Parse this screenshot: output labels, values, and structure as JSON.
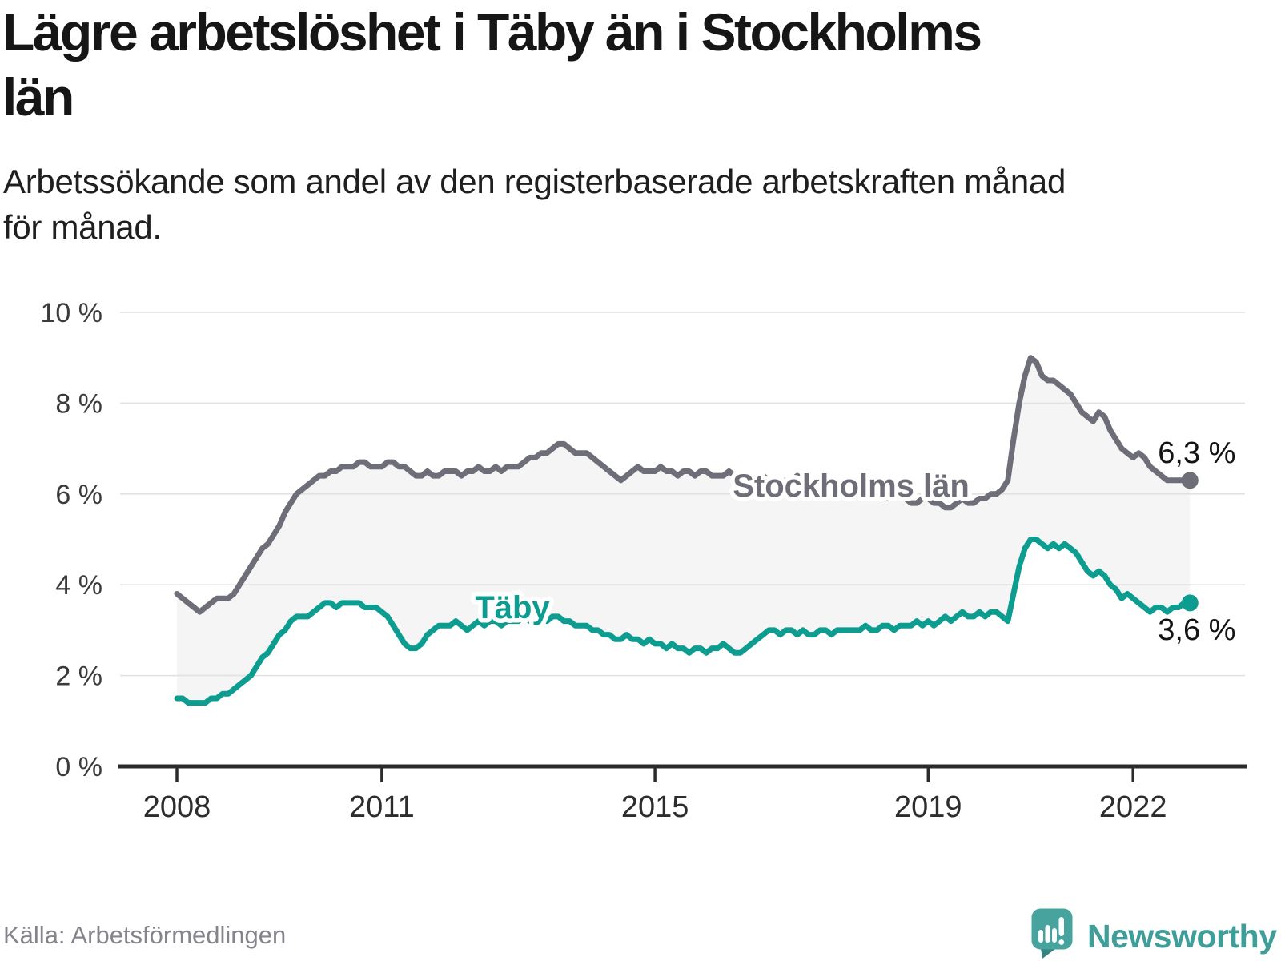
{
  "header": {
    "title_lines": [
      "Lägre arbetslöshet i Täby än i Stockholms",
      "län"
    ],
    "subtitle_lines": [
      "Arbetssökande som andel av den registerbaserade arbetskraften månad",
      "för månad."
    ]
  },
  "footer": {
    "source": "Källa: Arbetsförmedlingen",
    "brand_name": "Newsworthy"
  },
  "colors": {
    "stockholm_line": "#6e6e78",
    "taby_line": "#0d9d90",
    "band_fill": "#f5f5f6",
    "gridline": "#e2e2e2",
    "axis": "#2b2b2b",
    "tick_label": "#2d2d2d",
    "y_label": "#3b3b3b",
    "end_label": "#141414",
    "brand_teal": "#47a39e",
    "brand_teal_dark": "#35827e"
  },
  "chart_data": {
    "type": "line",
    "unit": "%",
    "x_start": {
      "year": 2008,
      "month": 1
    },
    "x_end": {
      "year": 2022,
      "month": 11
    },
    "ylim": [
      0,
      10
    ],
    "grid": true,
    "legend_position": "inline-labels",
    "y_ticks": [
      {
        "value": 0,
        "label": "0 %"
      },
      {
        "value": 2,
        "label": "2 %"
      },
      {
        "value": 4,
        "label": "4 %"
      },
      {
        "value": 6,
        "label": "6 %"
      },
      {
        "value": 8,
        "label": "8 %"
      },
      {
        "value": 10,
        "label": "10 %"
      }
    ],
    "x_ticks": [
      {
        "year": 2008,
        "label": "2008"
      },
      {
        "year": 2011,
        "label": "2011"
      },
      {
        "year": 2015,
        "label": "2015"
      },
      {
        "year": 2019,
        "label": "2019"
      },
      {
        "year": 2022,
        "label": "2022"
      }
    ],
    "series": [
      {
        "name": "Stockholms län",
        "slug": "stockholms-lan",
        "color": "#6e6e78",
        "end_label": "6,3 %",
        "end_value": 6.3,
        "values": [
          3.8,
          3.7,
          3.6,
          3.5,
          3.4,
          3.5,
          3.6,
          3.7,
          3.7,
          3.7,
          3.8,
          4.0,
          4.2,
          4.4,
          4.6,
          4.8,
          4.9,
          5.1,
          5.3,
          5.6,
          5.8,
          6.0,
          6.1,
          6.2,
          6.3,
          6.4,
          6.4,
          6.5,
          6.5,
          6.6,
          6.6,
          6.6,
          6.7,
          6.7,
          6.6,
          6.6,
          6.6,
          6.7,
          6.7,
          6.6,
          6.6,
          6.5,
          6.4,
          6.4,
          6.5,
          6.4,
          6.4,
          6.5,
          6.5,
          6.5,
          6.4,
          6.5,
          6.5,
          6.6,
          6.5,
          6.5,
          6.6,
          6.5,
          6.6,
          6.6,
          6.6,
          6.7,
          6.8,
          6.8,
          6.9,
          6.9,
          7.0,
          7.1,
          7.1,
          7.0,
          6.9,
          6.9,
          6.9,
          6.8,
          6.7,
          6.6,
          6.5,
          6.4,
          6.3,
          6.4,
          6.5,
          6.6,
          6.5,
          6.5,
          6.5,
          6.6,
          6.5,
          6.5,
          6.4,
          6.5,
          6.5,
          6.4,
          6.5,
          6.5,
          6.4,
          6.4,
          6.4,
          6.5,
          6.4,
          6.3,
          6.3,
          6.2,
          6.3,
          6.4,
          6.3,
          6.3,
          6.2,
          6.3,
          6.3,
          6.4,
          6.3,
          6.2,
          6.1,
          6.2,
          6.3,
          6.2,
          6.1,
          6.1,
          6.0,
          6.1,
          6.1,
          6.2,
          6.1,
          6.0,
          5.9,
          5.9,
          6.0,
          6.0,
          5.9,
          5.8,
          5.8,
          5.9,
          5.9,
          5.8,
          5.8,
          5.7,
          5.7,
          5.8,
          5.9,
          5.8,
          5.8,
          5.9,
          5.9,
          6.0,
          6.0,
          6.1,
          6.3,
          7.2,
          8.0,
          8.6,
          9.0,
          8.9,
          8.6,
          8.5,
          8.5,
          8.4,
          8.3,
          8.2,
          8.0,
          7.8,
          7.7,
          7.6,
          7.8,
          7.7,
          7.4,
          7.2,
          7.0,
          6.9,
          6.8,
          6.9,
          6.8,
          6.6,
          6.5,
          6.4,
          6.3,
          6.3,
          6.3,
          6.3,
          6.3
        ]
      },
      {
        "name": "Täby",
        "slug": "taby",
        "color": "#0d9d90",
        "end_label": "3,6 %",
        "end_value": 3.6,
        "values": [
          1.5,
          1.5,
          1.4,
          1.4,
          1.4,
          1.4,
          1.5,
          1.5,
          1.6,
          1.6,
          1.7,
          1.8,
          1.9,
          2.0,
          2.2,
          2.4,
          2.5,
          2.7,
          2.9,
          3.0,
          3.2,
          3.3,
          3.3,
          3.3,
          3.4,
          3.5,
          3.6,
          3.6,
          3.5,
          3.6,
          3.6,
          3.6,
          3.6,
          3.5,
          3.5,
          3.5,
          3.4,
          3.3,
          3.1,
          2.9,
          2.7,
          2.6,
          2.6,
          2.7,
          2.9,
          3.0,
          3.1,
          3.1,
          3.1,
          3.2,
          3.1,
          3.0,
          3.1,
          3.2,
          3.1,
          3.2,
          3.2,
          3.1,
          3.2,
          3.2,
          3.2,
          3.3,
          3.2,
          3.3,
          3.3,
          3.2,
          3.3,
          3.3,
          3.2,
          3.2,
          3.1,
          3.1,
          3.1,
          3.0,
          3.0,
          2.9,
          2.9,
          2.8,
          2.8,
          2.9,
          2.8,
          2.8,
          2.7,
          2.8,
          2.7,
          2.7,
          2.6,
          2.7,
          2.6,
          2.6,
          2.5,
          2.6,
          2.6,
          2.5,
          2.6,
          2.6,
          2.7,
          2.6,
          2.5,
          2.5,
          2.6,
          2.7,
          2.8,
          2.9,
          3.0,
          3.0,
          2.9,
          3.0,
          3.0,
          2.9,
          3.0,
          2.9,
          2.9,
          3.0,
          3.0,
          2.9,
          3.0,
          3.0,
          3.0,
          3.0,
          3.0,
          3.1,
          3.0,
          3.0,
          3.1,
          3.1,
          3.0,
          3.1,
          3.1,
          3.1,
          3.2,
          3.1,
          3.2,
          3.1,
          3.2,
          3.3,
          3.2,
          3.3,
          3.4,
          3.3,
          3.3,
          3.4,
          3.3,
          3.4,
          3.4,
          3.3,
          3.2,
          3.8,
          4.4,
          4.8,
          5.0,
          5.0,
          4.9,
          4.8,
          4.9,
          4.8,
          4.9,
          4.8,
          4.7,
          4.5,
          4.3,
          4.2,
          4.3,
          4.2,
          4.0,
          3.9,
          3.7,
          3.8,
          3.7,
          3.6,
          3.5,
          3.4,
          3.5,
          3.5,
          3.4,
          3.5,
          3.5,
          3.6,
          3.6
        ]
      }
    ]
  }
}
